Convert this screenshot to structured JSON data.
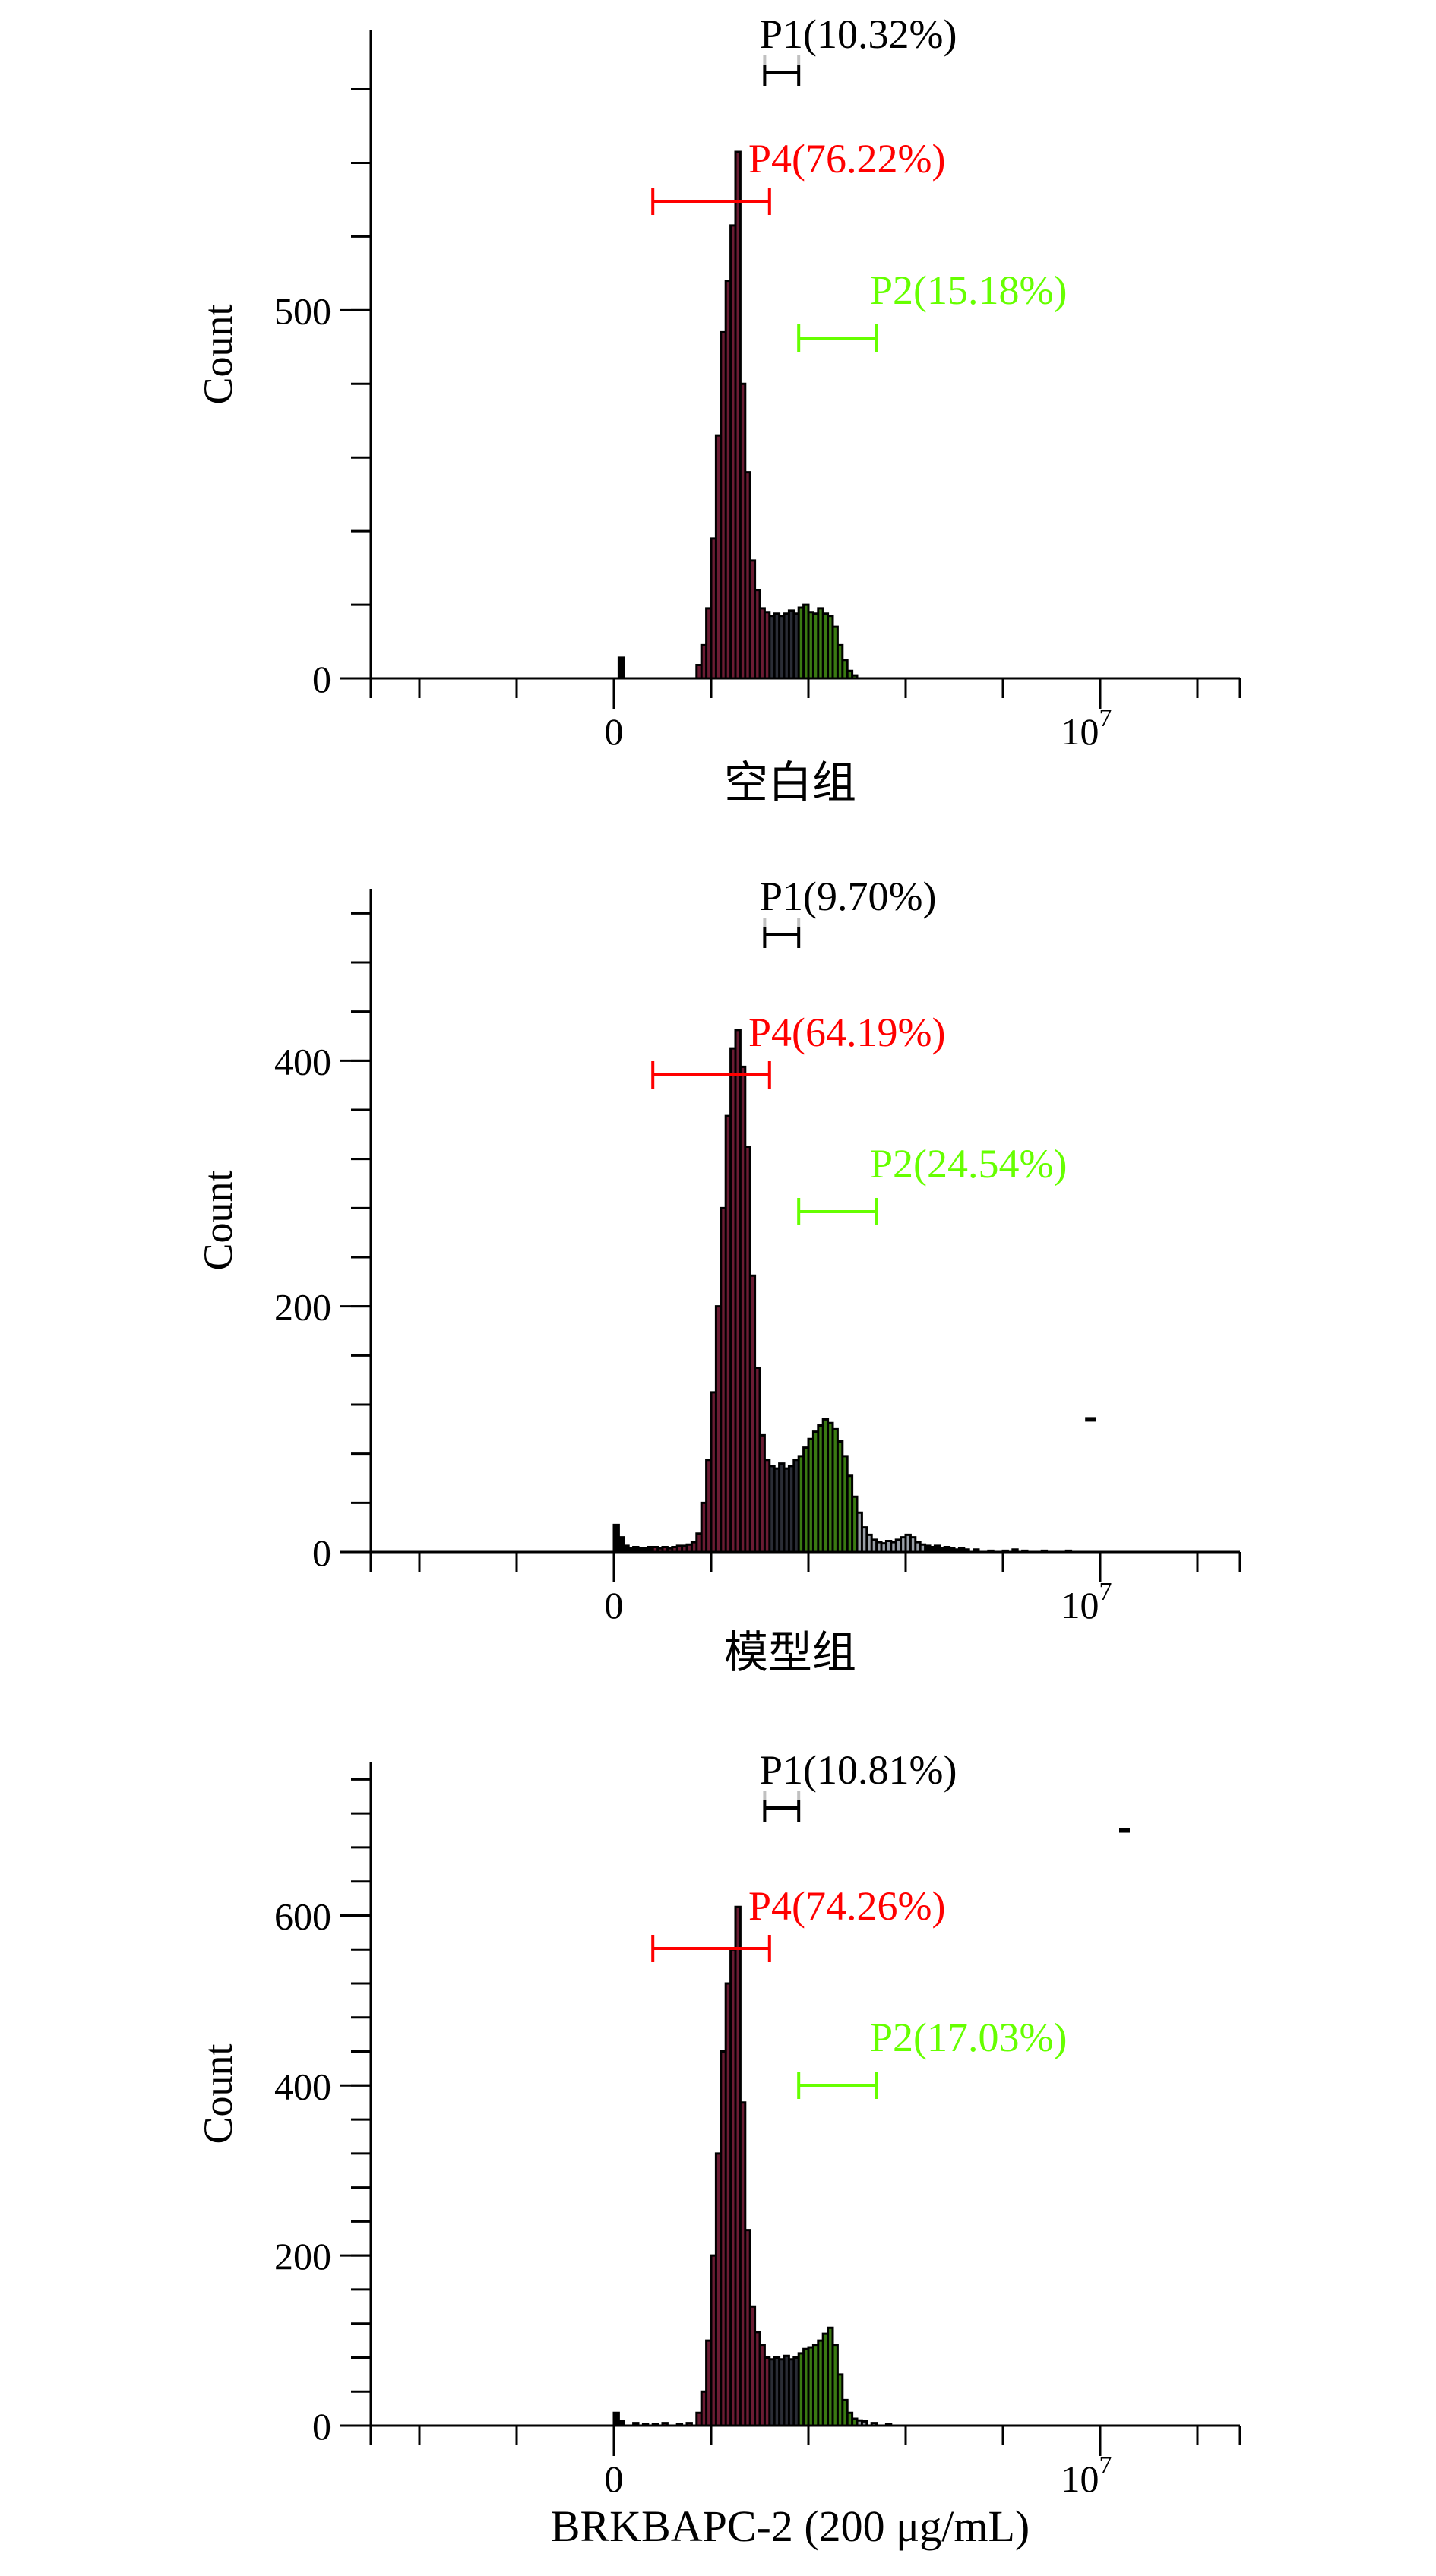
{
  "chart_data": [
    {
      "type": "histogram",
      "xlabel": "空白组",
      "ylabel": "Count",
      "ylim": [
        0,
        880
      ],
      "y_ticks": [
        0,
        500
      ],
      "y_minor_step": 100,
      "x_ticks": [
        {
          "label": "0",
          "value": 0
        },
        {
          "label": "10",
          "sup": "7",
          "value": 10
        }
      ],
      "xlim": [
        -5,
        13
      ],
      "gates": [
        {
          "name": "P1",
          "label": "P1(10.32%)",
          "color": "#000000",
          "range": [
            3.1,
            3.8
          ]
        },
        {
          "name": "P4",
          "label": "P4(76.22%)",
          "color": "#ff0000",
          "range": [
            0.8,
            3.2
          ]
        },
        {
          "name": "P2",
          "label": "P2(15.18%)",
          "color": "#66ff00",
          "range": [
            3.8,
            5.4
          ]
        }
      ],
      "bins": [
        [
          0.1,
          28
        ],
        [
          1.7,
          18
        ],
        [
          1.8,
          45
        ],
        [
          1.9,
          95
        ],
        [
          2.0,
          190
        ],
        [
          2.1,
          330
        ],
        [
          2.2,
          470
        ],
        [
          2.3,
          540
        ],
        [
          2.4,
          615
        ],
        [
          2.5,
          715
        ],
        [
          2.6,
          400
        ],
        [
          2.7,
          280
        ],
        [
          2.8,
          160
        ],
        [
          2.9,
          120
        ],
        [
          3.0,
          95
        ],
        [
          3.1,
          90
        ],
        [
          3.2,
          85
        ],
        [
          3.3,
          88
        ],
        [
          3.4,
          85
        ],
        [
          3.5,
          88
        ],
        [
          3.6,
          92
        ],
        [
          3.7,
          88
        ],
        [
          3.8,
          96
        ],
        [
          3.9,
          100
        ],
        [
          4.0,
          90
        ],
        [
          4.1,
          88
        ],
        [
          4.2,
          95
        ],
        [
          4.3,
          88
        ],
        [
          4.4,
          85
        ],
        [
          4.5,
          70
        ],
        [
          4.6,
          45
        ],
        [
          4.7,
          25
        ],
        [
          4.8,
          10
        ],
        [
          4.9,
          4
        ]
      ]
    },
    {
      "type": "histogram",
      "xlabel": "模型组",
      "ylabel": "Count",
      "ylim": [
        0,
        540
      ],
      "y_ticks": [
        0,
        200,
        400
      ],
      "y_minor_step": 40,
      "x_ticks": [
        {
          "label": "0",
          "value": 0
        },
        {
          "label": "10",
          "sup": "7",
          "value": 10
        }
      ],
      "xlim": [
        -5,
        13
      ],
      "gates": [
        {
          "name": "P1",
          "label": "P1(9.70%)",
          "color": "#000000",
          "range": [
            3.1,
            3.8
          ]
        },
        {
          "name": "P4",
          "label": "P4(64.19%)",
          "color": "#ff0000",
          "range": [
            0.8,
            3.2
          ]
        },
        {
          "name": "P2",
          "label": "P2(24.54%)",
          "color": "#66ff00",
          "range": [
            3.8,
            5.4
          ]
        }
      ],
      "bins": [
        [
          0.0,
          22
        ],
        [
          0.1,
          12
        ],
        [
          0.2,
          5
        ],
        [
          0.3,
          3
        ],
        [
          0.4,
          4
        ],
        [
          0.5,
          3
        ],
        [
          0.6,
          3
        ],
        [
          0.7,
          4
        ],
        [
          0.8,
          4
        ],
        [
          0.9,
          3
        ],
        [
          1.0,
          4
        ],
        [
          1.1,
          3
        ],
        [
          1.2,
          4
        ],
        [
          1.3,
          5
        ],
        [
          1.4,
          5
        ],
        [
          1.5,
          6
        ],
        [
          1.6,
          8
        ],
        [
          1.7,
          15
        ],
        [
          1.8,
          40
        ],
        [
          1.9,
          75
        ],
        [
          2.0,
          130
        ],
        [
          2.1,
          200
        ],
        [
          2.2,
          280
        ],
        [
          2.3,
          355
        ],
        [
          2.4,
          410
        ],
        [
          2.5,
          425
        ],
        [
          2.6,
          395
        ],
        [
          2.7,
          330
        ],
        [
          2.8,
          225
        ],
        [
          2.9,
          150
        ],
        [
          3.0,
          95
        ],
        [
          3.1,
          75
        ],
        [
          3.2,
          70
        ],
        [
          3.3,
          68
        ],
        [
          3.4,
          72
        ],
        [
          3.5,
          68
        ],
        [
          3.6,
          70
        ],
        [
          3.7,
          75
        ],
        [
          3.8,
          78
        ],
        [
          3.9,
          85
        ],
        [
          4.0,
          92
        ],
        [
          4.1,
          98
        ],
        [
          4.2,
          103
        ],
        [
          4.3,
          108
        ],
        [
          4.4,
          105
        ],
        [
          4.5,
          100
        ],
        [
          4.6,
          90
        ],
        [
          4.7,
          78
        ],
        [
          4.8,
          62
        ],
        [
          4.9,
          45
        ],
        [
          5.0,
          32
        ],
        [
          5.1,
          20
        ],
        [
          5.2,
          14
        ],
        [
          5.3,
          10
        ],
        [
          5.4,
          8
        ],
        [
          5.5,
          7
        ],
        [
          5.6,
          9
        ],
        [
          5.7,
          8
        ],
        [
          5.8,
          10
        ],
        [
          5.9,
          12
        ],
        [
          6.0,
          14
        ],
        [
          6.1,
          12
        ],
        [
          6.2,
          8
        ],
        [
          6.3,
          6
        ],
        [
          6.4,
          5
        ],
        [
          6.5,
          4
        ],
        [
          6.6,
          5
        ],
        [
          6.7,
          3
        ],
        [
          6.8,
          4
        ],
        [
          6.9,
          3
        ],
        [
          7.0,
          2
        ],
        [
          7.1,
          3
        ],
        [
          7.2,
          2
        ],
        [
          7.4,
          2
        ],
        [
          7.7,
          1
        ],
        [
          8.0,
          1
        ],
        [
          8.2,
          2
        ],
        [
          8.4,
          1
        ],
        [
          8.8,
          1
        ],
        [
          9.3,
          1
        ]
      ],
      "outliers": [
        [
          9.8,
          108
        ]
      ]
    },
    {
      "type": "histogram",
      "xlabel": "BRKBAPC-2 (200 μg/mL)",
      "ylabel": "Count",
      "ylim": [
        0,
        780
      ],
      "y_ticks": [
        0,
        200,
        400,
        600
      ],
      "y_minor_step": 40,
      "x_ticks": [
        {
          "label": "0",
          "value": 0
        },
        {
          "label": "10",
          "sup": "7",
          "value": 10
        }
      ],
      "xlim": [
        -5,
        13
      ],
      "gates": [
        {
          "name": "P1",
          "label": "P1(10.81%)",
          "color": "#000000",
          "range": [
            3.1,
            3.8
          ]
        },
        {
          "name": "P4",
          "label": "P4(74.26%)",
          "color": "#ff0000",
          "range": [
            0.8,
            3.2
          ]
        },
        {
          "name": "P2",
          "label": "P2(17.03%)",
          "color": "#66ff00",
          "range": [
            3.8,
            5.4
          ]
        }
      ],
      "bins": [
        [
          0.0,
          15
        ],
        [
          0.1,
          5
        ],
        [
          0.4,
          3
        ],
        [
          0.6,
          2
        ],
        [
          0.8,
          2
        ],
        [
          1.0,
          3
        ],
        [
          1.3,
          2
        ],
        [
          1.5,
          3
        ],
        [
          1.7,
          15
        ],
        [
          1.8,
          40
        ],
        [
          1.9,
          100
        ],
        [
          2.0,
          200
        ],
        [
          2.1,
          320
        ],
        [
          2.2,
          440
        ],
        [
          2.3,
          520
        ],
        [
          2.4,
          560
        ],
        [
          2.5,
          610
        ],
        [
          2.6,
          380
        ],
        [
          2.7,
          230
        ],
        [
          2.8,
          140
        ],
        [
          2.9,
          110
        ],
        [
          3.0,
          95
        ],
        [
          3.1,
          80
        ],
        [
          3.2,
          78
        ],
        [
          3.3,
          80
        ],
        [
          3.4,
          78
        ],
        [
          3.5,
          82
        ],
        [
          3.6,
          78
        ],
        [
          3.7,
          80
        ],
        [
          3.8,
          85
        ],
        [
          3.9,
          90
        ],
        [
          4.0,
          92
        ],
        [
          4.1,
          95
        ],
        [
          4.2,
          100
        ],
        [
          4.3,
          108
        ],
        [
          4.4,
          115
        ],
        [
          4.5,
          95
        ],
        [
          4.6,
          60
        ],
        [
          4.7,
          30
        ],
        [
          4.8,
          15
        ],
        [
          4.9,
          8
        ],
        [
          5.0,
          6
        ],
        [
          5.1,
          5
        ],
        [
          5.3,
          3
        ],
        [
          5.6,
          2
        ]
      ],
      "outliers": [
        [
          10.5,
          700
        ]
      ]
    }
  ],
  "colors": {
    "p4_fill": "#6b1c33",
    "p1_fill": "#2a2d36",
    "p2_fill": "#3a7a12",
    "tail_fill": "#9aa0a8",
    "outline": "#000000",
    "p4_text": "#ff0000",
    "p2_text": "#66ff00",
    "p1_text": "#000000",
    "p1_bracket_top": "#c0c0c0"
  }
}
